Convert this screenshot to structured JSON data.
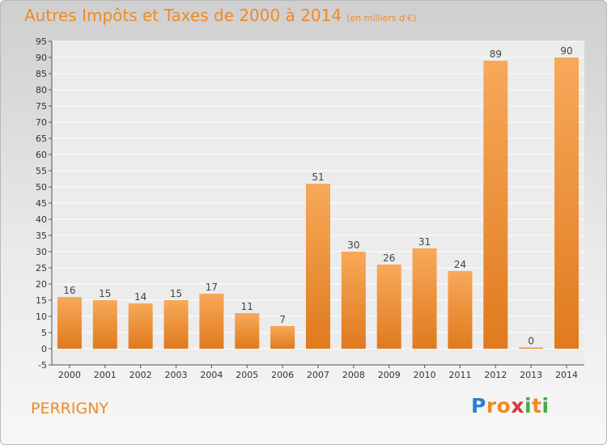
{
  "title": "Autres Impôts et Taxes de 2000 à 2014",
  "subtitle": "(en milliers d'€)",
  "commune": "PERRIGNY",
  "logo": {
    "text": "Proxiti",
    "letters": [
      {
        "ch": "P",
        "color": "#2a7fd0"
      },
      {
        "ch": "r",
        "color": "#f08a24"
      },
      {
        "ch": "o",
        "color": "#f08a24"
      },
      {
        "ch": "x",
        "color": "#d43a3a"
      },
      {
        "ch": "i",
        "color": "#4aa84a"
      },
      {
        "ch": "t",
        "color": "#f08a24"
      },
      {
        "ch": "i",
        "color": "#4aa84a"
      }
    ]
  },
  "colors": {
    "accent": "#f08a24",
    "bar_top": "#f7a95a",
    "bar_bottom": "#e07a1e"
  },
  "chart_data": {
    "type": "bar",
    "categories": [
      "2000",
      "2001",
      "2002",
      "2003",
      "2004",
      "2005",
      "2006",
      "2007",
      "2008",
      "2009",
      "2010",
      "2011",
      "2012",
      "2013",
      "2014"
    ],
    "values": [
      16,
      15,
      14,
      15,
      17,
      11,
      7,
      51,
      30,
      26,
      31,
      24,
      89,
      0,
      90
    ],
    "ylim": [
      -5,
      95
    ],
    "yticks": [
      -5,
      0,
      5,
      10,
      15,
      20,
      25,
      30,
      35,
      40,
      45,
      50,
      55,
      60,
      65,
      70,
      75,
      80,
      85,
      90,
      95
    ],
    "grid": "horizontal",
    "data_labels": true
  }
}
